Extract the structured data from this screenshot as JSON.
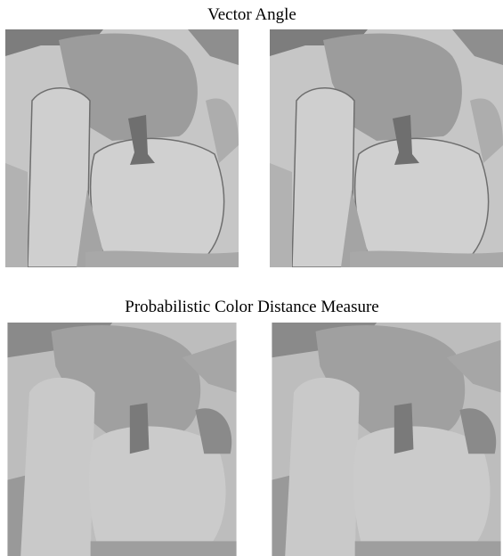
{
  "sections": [
    {
      "title": "Vector Angle"
    },
    {
      "title": "Probabilistic Color Distance Measure"
    }
  ]
}
